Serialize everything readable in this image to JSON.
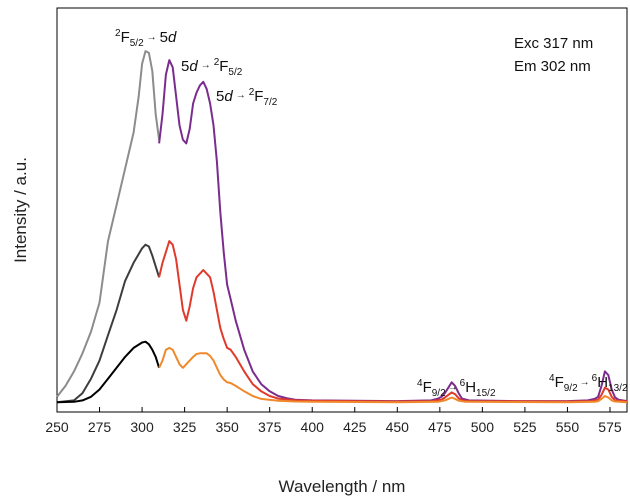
{
  "chart_data": {
    "type": "line",
    "xlabel": "Wavelength / nm",
    "ylabel": "Intensity / a.u.",
    "xlim": [
      250,
      585
    ],
    "ylim": [
      0,
      1
    ],
    "x_ticks": [
      250,
      275,
      300,
      325,
      350,
      375,
      400,
      425,
      450,
      475,
      500,
      525,
      550,
      575
    ],
    "y_ticks_shown": false,
    "grid": false,
    "legend": "none",
    "notes": [
      "Exc 317 nm",
      "Em 302 nm"
    ],
    "annotations": [
      {
        "parts": [
          "2",
          "F",
          "5/2",
          "→",
          "5",
          "d"
        ]
      },
      {
        "parts": [
          "5",
          "d",
          "→",
          "2",
          "F",
          "5/2"
        ]
      },
      {
        "parts": [
          "5",
          "d",
          "→",
          "2",
          "F",
          "7/2"
        ]
      },
      {
        "parts": [
          "4",
          "F",
          "9/2",
          "→",
          "6",
          "H",
          "15/2"
        ]
      },
      {
        "parts": [
          "4",
          "F",
          "9/2",
          "→",
          "6",
          "H",
          "13/2"
        ]
      }
    ],
    "series": [
      {
        "color": "#8c8c8c",
        "points": [
          [
            250,
            0.02
          ],
          [
            255,
            0.05
          ],
          [
            260,
            0.09
          ],
          [
            265,
            0.14
          ],
          [
            270,
            0.2
          ],
          [
            275,
            0.28
          ],
          [
            280,
            0.45
          ],
          [
            285,
            0.55
          ],
          [
            290,
            0.65
          ],
          [
            295,
            0.75
          ],
          [
            298,
            0.85
          ],
          [
            300,
            0.94
          ],
          [
            302,
            0.975
          ],
          [
            304,
            0.97
          ],
          [
            306,
            0.92
          ],
          [
            308,
            0.8
          ],
          [
            310,
            0.73
          ]
        ]
      },
      {
        "color": "#3d3d3d",
        "points": [
          [
            250,
            0.005
          ],
          [
            260,
            0.01
          ],
          [
            265,
            0.03
          ],
          [
            270,
            0.07
          ],
          [
            275,
            0.12
          ],
          [
            280,
            0.19
          ],
          [
            285,
            0.26
          ],
          [
            290,
            0.34
          ],
          [
            295,
            0.39
          ],
          [
            300,
            0.43
          ],
          [
            302,
            0.44
          ],
          [
            304,
            0.435
          ],
          [
            306,
            0.41
          ],
          [
            308,
            0.38
          ],
          [
            310,
            0.35
          ]
        ]
      },
      {
        "color": "#000000",
        "points": [
          [
            250,
            0.005
          ],
          [
            260,
            0.006
          ],
          [
            265,
            0.01
          ],
          [
            270,
            0.02
          ],
          [
            275,
            0.04
          ],
          [
            280,
            0.07
          ],
          [
            285,
            0.1
          ],
          [
            290,
            0.13
          ],
          [
            295,
            0.155
          ],
          [
            300,
            0.17
          ],
          [
            302,
            0.172
          ],
          [
            304,
            0.165
          ],
          [
            306,
            0.15
          ],
          [
            308,
            0.13
          ],
          [
            310,
            0.1
          ]
        ]
      },
      {
        "color": "#7b2d8e",
        "points": [
          [
            310,
            0.72
          ],
          [
            312,
            0.8
          ],
          [
            314,
            0.91
          ],
          [
            316,
            0.95
          ],
          [
            318,
            0.93
          ],
          [
            320,
            0.85
          ],
          [
            322,
            0.77
          ],
          [
            324,
            0.73
          ],
          [
            326,
            0.72
          ],
          [
            328,
            0.76
          ],
          [
            330,
            0.83
          ],
          [
            332,
            0.86
          ],
          [
            334,
            0.88
          ],
          [
            336,
            0.89
          ],
          [
            338,
            0.87
          ],
          [
            340,
            0.83
          ],
          [
            342,
            0.77
          ],
          [
            344,
            0.67
          ],
          [
            346,
            0.53
          ],
          [
            348,
            0.42
          ],
          [
            350,
            0.33
          ],
          [
            352,
            0.29
          ],
          [
            355,
            0.23
          ],
          [
            360,
            0.15
          ],
          [
            365,
            0.09
          ],
          [
            370,
            0.055
          ],
          [
            375,
            0.035
          ],
          [
            380,
            0.022
          ],
          [
            385,
            0.016
          ],
          [
            390,
            0.012
          ],
          [
            400,
            0.01
          ],
          [
            450,
            0.008
          ],
          [
            470,
            0.01
          ],
          [
            474,
            0.015
          ],
          [
            476,
            0.02
          ],
          [
            478,
            0.03
          ],
          [
            480,
            0.045
          ],
          [
            482,
            0.06
          ],
          [
            484,
            0.05
          ],
          [
            486,
            0.03
          ],
          [
            488,
            0.015
          ],
          [
            492,
            0.01
          ],
          [
            520,
            0.008
          ],
          [
            550,
            0.008
          ],
          [
            562,
            0.01
          ],
          [
            566,
            0.014
          ],
          [
            568,
            0.02
          ],
          [
            570,
            0.05
          ],
          [
            572,
            0.09
          ],
          [
            574,
            0.08
          ],
          [
            576,
            0.04
          ],
          [
            578,
            0.018
          ],
          [
            580,
            0.012
          ],
          [
            585,
            0.008
          ]
        ]
      },
      {
        "color": "#e03a2c",
        "points": [
          [
            310,
            0.35
          ],
          [
            312,
            0.39
          ],
          [
            314,
            0.42
          ],
          [
            316,
            0.45
          ],
          [
            318,
            0.44
          ],
          [
            320,
            0.4
          ],
          [
            322,
            0.33
          ],
          [
            324,
            0.26
          ],
          [
            326,
            0.23
          ],
          [
            328,
            0.27
          ],
          [
            330,
            0.32
          ],
          [
            332,
            0.35
          ],
          [
            334,
            0.36
          ],
          [
            336,
            0.37
          ],
          [
            338,
            0.36
          ],
          [
            340,
            0.35
          ],
          [
            342,
            0.31
          ],
          [
            344,
            0.26
          ],
          [
            346,
            0.21
          ],
          [
            348,
            0.18
          ],
          [
            350,
            0.155
          ],
          [
            352,
            0.15
          ],
          [
            355,
            0.13
          ],
          [
            360,
            0.09
          ],
          [
            365,
            0.055
          ],
          [
            370,
            0.035
          ],
          [
            375,
            0.022
          ],
          [
            380,
            0.015
          ],
          [
            390,
            0.01
          ],
          [
            400,
            0.009
          ],
          [
            450,
            0.007
          ],
          [
            470,
            0.008
          ],
          [
            476,
            0.012
          ],
          [
            478,
            0.018
          ],
          [
            480,
            0.025
          ],
          [
            482,
            0.032
          ],
          [
            484,
            0.027
          ],
          [
            486,
            0.016
          ],
          [
            488,
            0.01
          ],
          [
            492,
            0.008
          ],
          [
            550,
            0.007
          ],
          [
            564,
            0.008
          ],
          [
            568,
            0.012
          ],
          [
            570,
            0.025
          ],
          [
            572,
            0.045
          ],
          [
            574,
            0.04
          ],
          [
            576,
            0.02
          ],
          [
            578,
            0.01
          ],
          [
            585,
            0.007
          ]
        ]
      },
      {
        "color": "#f0892c",
        "points": [
          [
            310,
            0.1
          ],
          [
            312,
            0.12
          ],
          [
            314,
            0.15
          ],
          [
            316,
            0.155
          ],
          [
            318,
            0.15
          ],
          [
            320,
            0.13
          ],
          [
            322,
            0.11
          ],
          [
            324,
            0.1
          ],
          [
            326,
            0.11
          ],
          [
            328,
            0.12
          ],
          [
            330,
            0.13
          ],
          [
            332,
            0.138
          ],
          [
            334,
            0.14
          ],
          [
            336,
            0.14
          ],
          [
            338,
            0.14
          ],
          [
            340,
            0.133
          ],
          [
            342,
            0.12
          ],
          [
            344,
            0.1
          ],
          [
            346,
            0.08
          ],
          [
            348,
            0.068
          ],
          [
            350,
            0.06
          ],
          [
            352,
            0.058
          ],
          [
            355,
            0.05
          ],
          [
            360,
            0.035
          ],
          [
            365,
            0.022
          ],
          [
            370,
            0.014
          ],
          [
            380,
            0.009
          ],
          [
            390,
            0.007
          ],
          [
            400,
            0.006
          ],
          [
            450,
            0.005
          ],
          [
            474,
            0.006
          ],
          [
            478,
            0.01
          ],
          [
            480,
            0.014
          ],
          [
            482,
            0.018
          ],
          [
            484,
            0.014
          ],
          [
            486,
            0.009
          ],
          [
            490,
            0.006
          ],
          [
            550,
            0.005
          ],
          [
            566,
            0.006
          ],
          [
            568,
            0.008
          ],
          [
            570,
            0.014
          ],
          [
            572,
            0.022
          ],
          [
            574,
            0.018
          ],
          [
            576,
            0.01
          ],
          [
            578,
            0.007
          ],
          [
            585,
            0.005
          ]
        ]
      }
    ]
  }
}
